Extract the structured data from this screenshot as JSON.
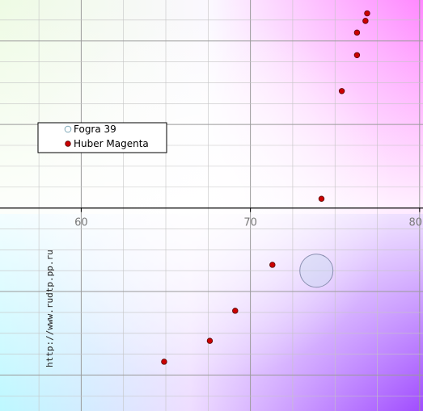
{
  "chart_data": {
    "type": "scatter",
    "subtype": "Lab a*b* color plane (partial view)",
    "title": "",
    "xlabel": "",
    "ylabel": "",
    "xlim": [
      55.2,
      80.2
    ],
    "ylim": [
      -24.3,
      24.9
    ],
    "x_ticks": [
      60,
      70,
      80
    ],
    "x_tick_labels": [
      "60",
      "70",
      "80"
    ],
    "grid": true,
    "grid_step_minor": 2.5,
    "grid_step_major": 10,
    "legend_position": "left, mid-upper",
    "series": [
      {
        "name": "Fogra 39",
        "marker": "open circle",
        "color": "#c8d8f0",
        "points": [
          {
            "x": 73.9,
            "y": -7.5
          }
        ]
      },
      {
        "name": "Huber Magenta",
        "marker": "filled circle",
        "color": "#cc0000",
        "points": [
          {
            "x": 76.9,
            "y": 23.3
          },
          {
            "x": 76.8,
            "y": 22.4
          },
          {
            "x": 76.3,
            "y": 21.0
          },
          {
            "x": 76.3,
            "y": 18.3
          },
          {
            "x": 75.4,
            "y": 14.0
          },
          {
            "x": 74.2,
            "y": 1.1
          },
          {
            "x": 71.3,
            "y": -6.8
          },
          {
            "x": 69.1,
            "y": -12.3
          },
          {
            "x": 67.6,
            "y": -15.9
          },
          {
            "x": 64.9,
            "y": -18.4
          }
        ]
      }
    ],
    "annotation": "http://www.rudtp.pp.ru"
  },
  "colors": {
    "top_left": "#eefbe4",
    "top_right": "#ff88ff",
    "center": "#ffffff",
    "bottom_left": "#bdf8ff",
    "bottom_right": "#a04cff",
    "grid": "#c4c4c4",
    "axis": "#000000",
    "legend_border": "#000000",
    "watermark": "#222222"
  }
}
